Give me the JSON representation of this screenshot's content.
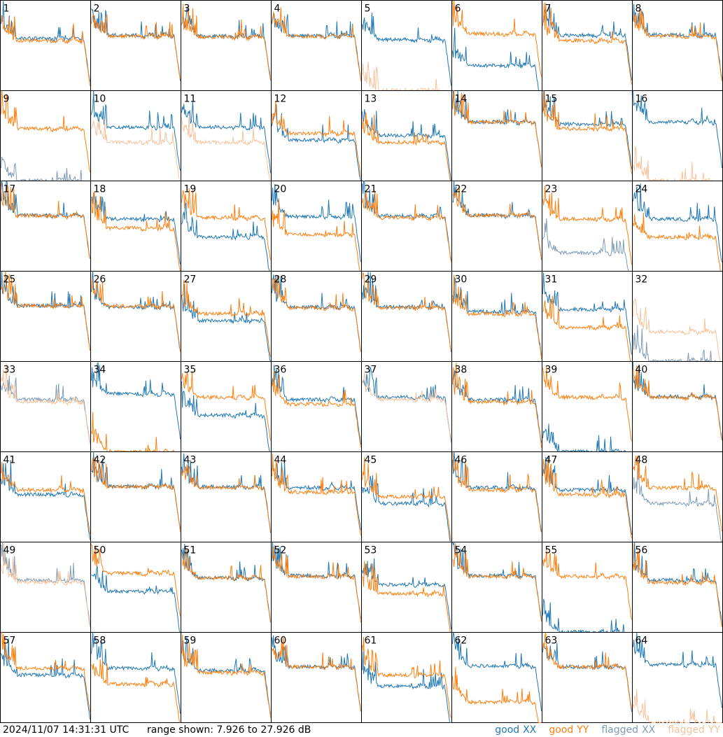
{
  "footer": {
    "timestamp": "2024/11/07 14:31:31 UTC",
    "range_prefix": "range shown:",
    "range_value": "7.926 to 27.926 dB"
  },
  "legend": [
    {
      "word": "good",
      "pol": "XX",
      "color": "#1f77b4"
    },
    {
      "word": "good",
      "pol": "YY",
      "color": "#ff7f0e"
    },
    {
      "word": "flagged",
      "pol": "XX",
      "color": "#7f9bb5"
    },
    {
      "word": "flagged",
      "pol": "YY",
      "color": "#f6c39b"
    }
  ],
  "chart_data": {
    "type": "line",
    "grid": {
      "rows": 8,
      "cols": 8
    },
    "xlabel": "",
    "ylabel": "",
    "ylim": [
      7.926,
      27.926
    ],
    "units": "dB",
    "series_keys": [
      "good XX",
      "good YY",
      "flagged XX",
      "flagged YY"
    ],
    "panels": [
      {
        "label": "1",
        "xx": "good",
        "yy": "good",
        "xx_level": 19.5,
        "yy_level": 19.0
      },
      {
        "label": "2",
        "xx": "good",
        "yy": "good",
        "xx_level": 20.2,
        "yy_level": 20.0
      },
      {
        "label": "3",
        "xx": "good",
        "yy": "good",
        "xx_level": 20.0,
        "yy_level": 19.8
      },
      {
        "label": "4",
        "xx": "good",
        "yy": "good",
        "xx_level": 20.1,
        "yy_level": 20.0
      },
      {
        "label": "5",
        "xx": "good",
        "yy": "flagged",
        "xx_level": 19.2,
        "yy_level": 8.0
      },
      {
        "label": "6",
        "xx": "good",
        "yy": "good",
        "xx_level": 13.5,
        "yy_level": 20.5
      },
      {
        "label": "7",
        "xx": "good",
        "yy": "good",
        "xx_level": 20.2,
        "yy_level": 19.0
      },
      {
        "label": "8",
        "xx": "good",
        "yy": "good",
        "xx_level": 20.3,
        "yy_level": 20.0
      },
      {
        "label": "9",
        "xx": "flagged",
        "yy": "good",
        "xx_level": 8.0,
        "yy_level": 19.5
      },
      {
        "label": "10",
        "xx": "good",
        "yy": "flagged",
        "xx_level": 19.8,
        "yy_level": 16.5
      },
      {
        "label": "11",
        "xx": "good",
        "yy": "flagged",
        "xx_level": 19.8,
        "yy_level": 16.5
      },
      {
        "label": "12",
        "xx": "good",
        "yy": "good",
        "xx_level": 17.0,
        "yy_level": 18.5
      },
      {
        "label": "13",
        "xx": "good",
        "yy": "good",
        "xx_level": 18.0,
        "yy_level": 16.5
      },
      {
        "label": "14",
        "xx": "good",
        "yy": "good",
        "xx_level": 21.0,
        "yy_level": 21.0
      },
      {
        "label": "15",
        "xx": "good",
        "yy": "good",
        "xx_level": 20.5,
        "yy_level": 19.5
      },
      {
        "label": "16",
        "xx": "good",
        "yy": "flagged",
        "xx_level": 21.0,
        "yy_level": 8.0
      },
      {
        "label": "17",
        "xx": "good",
        "yy": "good",
        "xx_level": 20.3,
        "yy_level": 20.2
      },
      {
        "label": "18",
        "xx": "good",
        "yy": "good",
        "xx_level": 19.5,
        "yy_level": 17.5
      },
      {
        "label": "19",
        "xx": "good",
        "yy": "good",
        "xx_level": 15.5,
        "yy_level": 19.8
      },
      {
        "label": "20",
        "xx": "good",
        "yy": "good",
        "xx_level": 20.0,
        "yy_level": 16.0
      },
      {
        "label": "21",
        "xx": "good",
        "yy": "good",
        "xx_level": 20.2,
        "yy_level": 19.8
      },
      {
        "label": "22",
        "xx": "good",
        "yy": "good",
        "xx_level": 20.3,
        "yy_level": 20.3
      },
      {
        "label": "23",
        "xx": "flagged",
        "yy": "good",
        "xx_level": 12.0,
        "yy_level": 19.5
      },
      {
        "label": "24",
        "xx": "good",
        "yy": "good",
        "xx_level": 19.5,
        "yy_level": 15.5
      },
      {
        "label": "25",
        "xx": "good",
        "yy": "good",
        "xx_level": 20.3,
        "yy_level": 20.3
      },
      {
        "label": "26",
        "xx": "good",
        "yy": "good",
        "xx_level": 20.0,
        "yy_level": 20.2
      },
      {
        "label": "27",
        "xx": "good",
        "yy": "good",
        "xx_level": 17.0,
        "yy_level": 18.5
      },
      {
        "label": "28",
        "xx": "good",
        "yy": "good",
        "xx_level": 20.0,
        "yy_level": 19.8
      },
      {
        "label": "29",
        "xx": "good",
        "yy": "good",
        "xx_level": 20.0,
        "yy_level": 19.8
      },
      {
        "label": "30",
        "xx": "good",
        "yy": "good",
        "xx_level": 19.0,
        "yy_level": 18.5
      },
      {
        "label": "31",
        "xx": "good",
        "yy": "good",
        "xx_level": 19.5,
        "yy_level": 15.5
      },
      {
        "label": "32",
        "xx": "flagged",
        "yy": "flagged",
        "xx_level": 8.0,
        "yy_level": 14.5
      },
      {
        "label": "33",
        "xx": "flagged",
        "yy": "flagged",
        "xx_level": 19.5,
        "yy_level": 19.0
      },
      {
        "label": "34",
        "xx": "good",
        "yy": "good",
        "xx_level": 20.8,
        "yy_level": 8.0
      },
      {
        "label": "35",
        "xx": "good",
        "yy": "good",
        "xx_level": 16.0,
        "yy_level": 20.0
      },
      {
        "label": "36",
        "xx": "good",
        "yy": "good",
        "xx_level": 19.5,
        "yy_level": 18.5
      },
      {
        "label": "37",
        "xx": "good",
        "yy": "flagged",
        "xx_level": 20.0,
        "yy_level": 19.5
      },
      {
        "label": "38",
        "xx": "good",
        "yy": "good",
        "xx_level": 19.5,
        "yy_level": 19.0
      },
      {
        "label": "39",
        "xx": "good",
        "yy": "good",
        "xx_level": 8.0,
        "yy_level": 20.0
      },
      {
        "label": "40",
        "xx": "good",
        "yy": "good",
        "xx_level": 20.2,
        "yy_level": 20.0
      },
      {
        "label": "41",
        "xx": "good",
        "yy": "good",
        "xx_level": 18.5,
        "yy_level": 19.5
      },
      {
        "label": "42",
        "xx": "good",
        "yy": "good",
        "xx_level": 20.3,
        "yy_level": 20.2
      },
      {
        "label": "43",
        "xx": "good",
        "yy": "good",
        "xx_level": 20.2,
        "yy_level": 20.0
      },
      {
        "label": "44",
        "xx": "good",
        "yy": "good",
        "xx_level": 20.0,
        "yy_level": 19.0
      },
      {
        "label": "45",
        "xx": "good",
        "yy": "good",
        "xx_level": 16.5,
        "yy_level": 18.0
      },
      {
        "label": "46",
        "xx": "good",
        "yy": "good",
        "xx_level": 20.0,
        "yy_level": 19.5
      },
      {
        "label": "47",
        "xx": "good",
        "yy": "good",
        "xx_level": 19.5,
        "yy_level": 18.5
      },
      {
        "label": "48",
        "xx": "flagged",
        "yy": "good",
        "xx_level": 16.5,
        "yy_level": 20.0
      },
      {
        "label": "49",
        "xx": "flagged",
        "yy": "flagged",
        "xx_level": 19.5,
        "yy_level": 19.0
      },
      {
        "label": "50",
        "xx": "good",
        "yy": "good",
        "xx_level": 17.0,
        "yy_level": 21.0
      },
      {
        "label": "51",
        "xx": "good",
        "yy": "good",
        "xx_level": 20.0,
        "yy_level": 20.0
      },
      {
        "label": "52",
        "xx": "good",
        "yy": "good",
        "xx_level": 20.5,
        "yy_level": 20.3
      },
      {
        "label": "53",
        "xx": "good",
        "yy": "good",
        "xx_level": 18.5,
        "yy_level": 16.5
      },
      {
        "label": "54",
        "xx": "good",
        "yy": "good",
        "xx_level": 20.5,
        "yy_level": 20.3
      },
      {
        "label": "55",
        "xx": "good",
        "yy": "good",
        "xx_level": 8.0,
        "yy_level": 20.3
      },
      {
        "label": "56",
        "xx": "good",
        "yy": "good",
        "xx_level": 19.5,
        "yy_level": 19.0
      },
      {
        "label": "57",
        "xx": "good",
        "yy": "good",
        "xx_level": 18.5,
        "yy_level": 20.0
      },
      {
        "label": "58",
        "xx": "good",
        "yy": "good",
        "xx_level": 20.0,
        "yy_level": 16.5
      },
      {
        "label": "59",
        "xx": "good",
        "yy": "good",
        "xx_level": 19.5,
        "yy_level": 19.0
      },
      {
        "label": "60",
        "xx": "good",
        "yy": "good",
        "xx_level": 20.3,
        "yy_level": 20.3
      },
      {
        "label": "61",
        "xx": "good",
        "yy": "good",
        "xx_level": 16.0,
        "yy_level": 18.5
      },
      {
        "label": "62",
        "xx": "good",
        "yy": "good",
        "xx_level": 20.5,
        "yy_level": 12.5
      },
      {
        "label": "63",
        "xx": "good",
        "yy": "good",
        "xx_level": 20.3,
        "yy_level": 20.3
      },
      {
        "label": "64",
        "xx": "good",
        "yy": "flagged",
        "xx_level": 20.8,
        "yy_level": 8.0
      }
    ]
  }
}
